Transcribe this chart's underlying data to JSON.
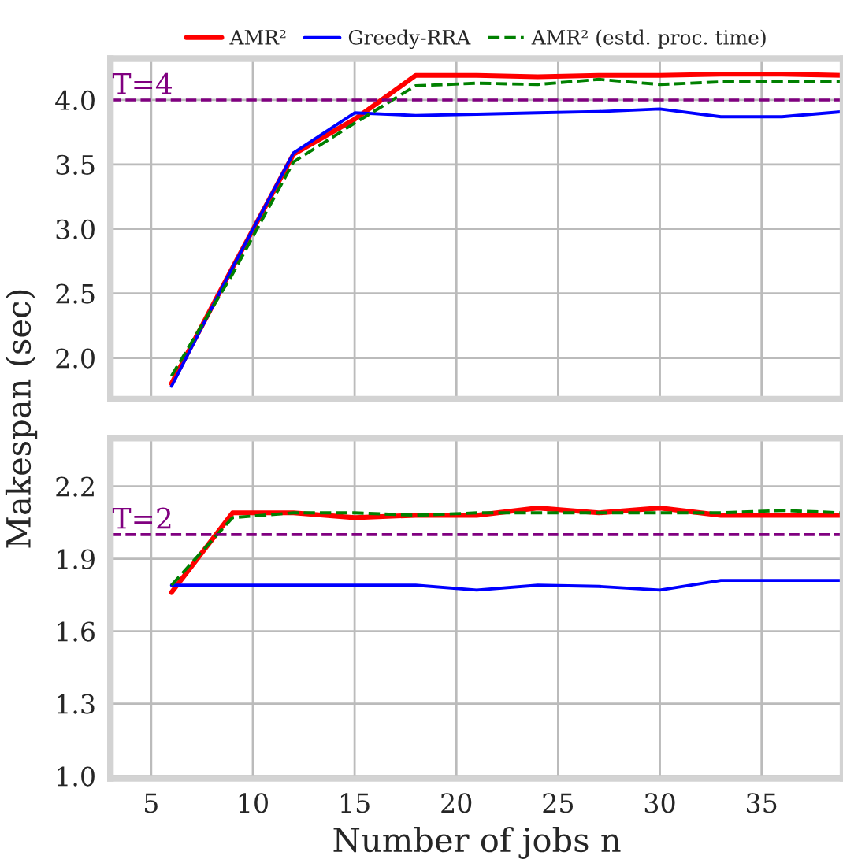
{
  "chart_data": [
    {
      "type": "line",
      "x": [
        6,
        9,
        12,
        15,
        18,
        21,
        24,
        27,
        30,
        33,
        36,
        39
      ],
      "legend": "top",
      "grid": true,
      "tick_labels": "y",
      "line_style": "solid",
      "xlim": [
        3,
        39
      ],
      "xticks": [
        5,
        10,
        15,
        20,
        25,
        30,
        35
      ],
      "ylim": [
        1.68,
        4.32
      ],
      "yticks": [
        {
          "value": 2.0,
          "label": "2.0"
        },
        {
          "value": 2.5,
          "label": "2.5"
        },
        {
          "value": 3.0,
          "label": "3.0"
        },
        {
          "value": 3.5,
          "label": "3.5"
        },
        {
          "value": 4.0,
          "label": "4.0"
        }
      ],
      "ref_lines": [
        {
          "axis": "y",
          "value": 4.0,
          "label": "T=4",
          "color": "#800080",
          "line_style": "dashed"
        }
      ],
      "series": [
        {
          "name": "AMR²",
          "color": "#ff0000",
          "values": [
            1.8,
            2.7,
            3.58,
            3.85,
            4.19,
            4.19,
            4.18,
            4.19,
            4.19,
            4.2,
            4.2,
            4.19
          ]
        },
        {
          "name": "Greedy-RRA",
          "color": "#0000ff",
          "values": [
            1.78,
            2.7,
            3.59,
            3.9,
            3.88,
            3.89,
            3.9,
            3.91,
            3.93,
            3.87,
            3.87,
            3.91
          ]
        },
        {
          "name": "AMR² (estd. proc. time)",
          "color": "#008000",
          "line_style": "dashed",
          "values": [
            1.86,
            2.65,
            3.52,
            3.82,
            4.11,
            4.13,
            4.12,
            4.16,
            4.12,
            4.14,
            4.14,
            4.14
          ]
        }
      ]
    },
    {
      "type": "line",
      "x": [
        6,
        9,
        12,
        15,
        18,
        21,
        24,
        27,
        30,
        33,
        36,
        39
      ],
      "grid": true,
      "line_style": "solid",
      "xlabel": "Number of jobs n",
      "ylabel": "Makespan (sec)",
      "xlim": [
        3,
        39
      ],
      "xticks": [
        5,
        10,
        15,
        20,
        25,
        30,
        35
      ],
      "ylim": [
        0.99,
        2.4
      ],
      "yticks": [
        {
          "value": 1.0,
          "label": "1.0"
        },
        {
          "value": 1.3,
          "label": "1.3"
        },
        {
          "value": 1.6,
          "label": "1.6"
        },
        {
          "value": 1.9,
          "label": "1.9"
        },
        {
          "value": 2.2,
          "label": "2.2"
        }
      ],
      "ref_lines": [
        {
          "axis": "y",
          "value": 2.0,
          "label": "T=2",
          "color": "#800080",
          "line_style": "dashed"
        }
      ],
      "series": [
        {
          "color": "#ff0000",
          "values": [
            1.76,
            2.09,
            2.09,
            2.07,
            2.08,
            2.08,
            2.11,
            2.09,
            2.11,
            2.08,
            2.08,
            2.08
          ]
        },
        {
          "color": "#0000ff",
          "values": [
            1.79,
            1.79,
            1.79,
            1.79,
            1.79,
            1.77,
            1.79,
            1.785,
            1.77,
            1.81,
            1.81,
            1.81
          ]
        },
        {
          "color": "#008000",
          "line_style": "dashed",
          "values": [
            1.79,
            2.07,
            2.09,
            2.09,
            2.08,
            2.09,
            2.09,
            2.09,
            2.09,
            2.09,
            2.1,
            2.09
          ]
        }
      ]
    }
  ]
}
